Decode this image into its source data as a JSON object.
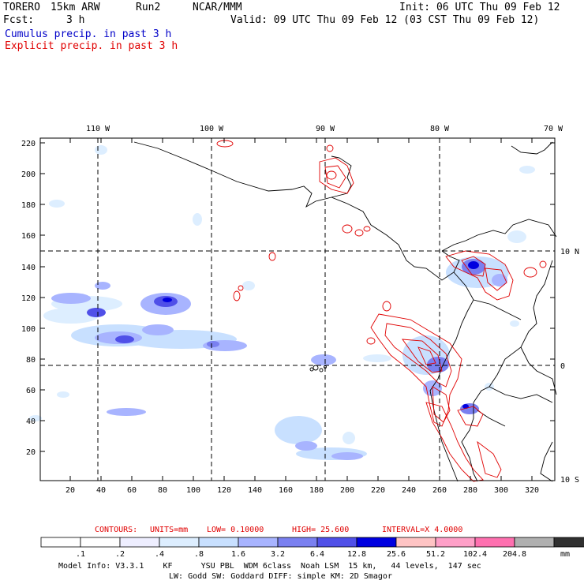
{
  "header": {
    "model_name": "TORERO",
    "resolution": "15km ARW",
    "run": "Run2",
    "center": "NCAR/MMM",
    "init": "Init: 06 UTC Thu 09 Feb 12",
    "fcst_label": "Fcst:",
    "fcst_value": "3 h",
    "valid": "Valid: 09 UTC Thu 09 Feb 12 (03 CST Thu 09 Feb 12)",
    "field1": "Cumulus precip. in past 3 h",
    "field2": "Explicit precip. in past 3 h"
  },
  "map": {
    "top_lon_labels": [
      "110 W",
      "100 W",
      "90 W",
      "80 W",
      "70 W"
    ],
    "right_lat_labels": [
      "10 N",
      "0",
      "10 S"
    ],
    "y_grid_labels": [
      "220",
      "200",
      "180",
      "160",
      "140",
      "120",
      "100",
      "80",
      "60",
      "40",
      "20"
    ],
    "x_grid_labels": [
      "20",
      "40",
      "60",
      "80",
      "100",
      "120",
      "140",
      "160",
      "180",
      "200",
      "220",
      "240",
      "260",
      "280",
      "300",
      "320"
    ]
  },
  "contours": {
    "label": "CONTOURS:",
    "units": "UNITS=mm",
    "low": "LOW= 0.10000",
    "high": "HIGH= 25.600",
    "interval": "INTERVAL=X 4.0000"
  },
  "colorbar": {
    "colors": [
      "#ffffff",
      "#ffffff",
      "#eeeeff",
      "#ddeeff",
      "#c8e0ff",
      "#a8b4ff",
      "#7a80f0",
      "#5050e8",
      "#0000e0",
      "#ffc4c4",
      "#ffa0c8",
      "#ff70b0",
      "#b0b0b0",
      "#303030",
      "#d8a8ff"
    ],
    "labels": [
      ".1",
      ".2",
      ".4",
      ".8",
      "1.6",
      "3.2",
      "6.4",
      "12.8",
      "25.6",
      "51.2",
      "102.4",
      "204.8"
    ],
    "unit": "mm"
  },
  "footer": {
    "line1": "Model Info: V3.3.1    KF      YSU PBL  WDM 6class  Noah LSM  15 km,   44 levels,  147 sec",
    "line2": "LW: Godd SW: Goddard DIFF: simple KM: 2D Smagor"
  }
}
